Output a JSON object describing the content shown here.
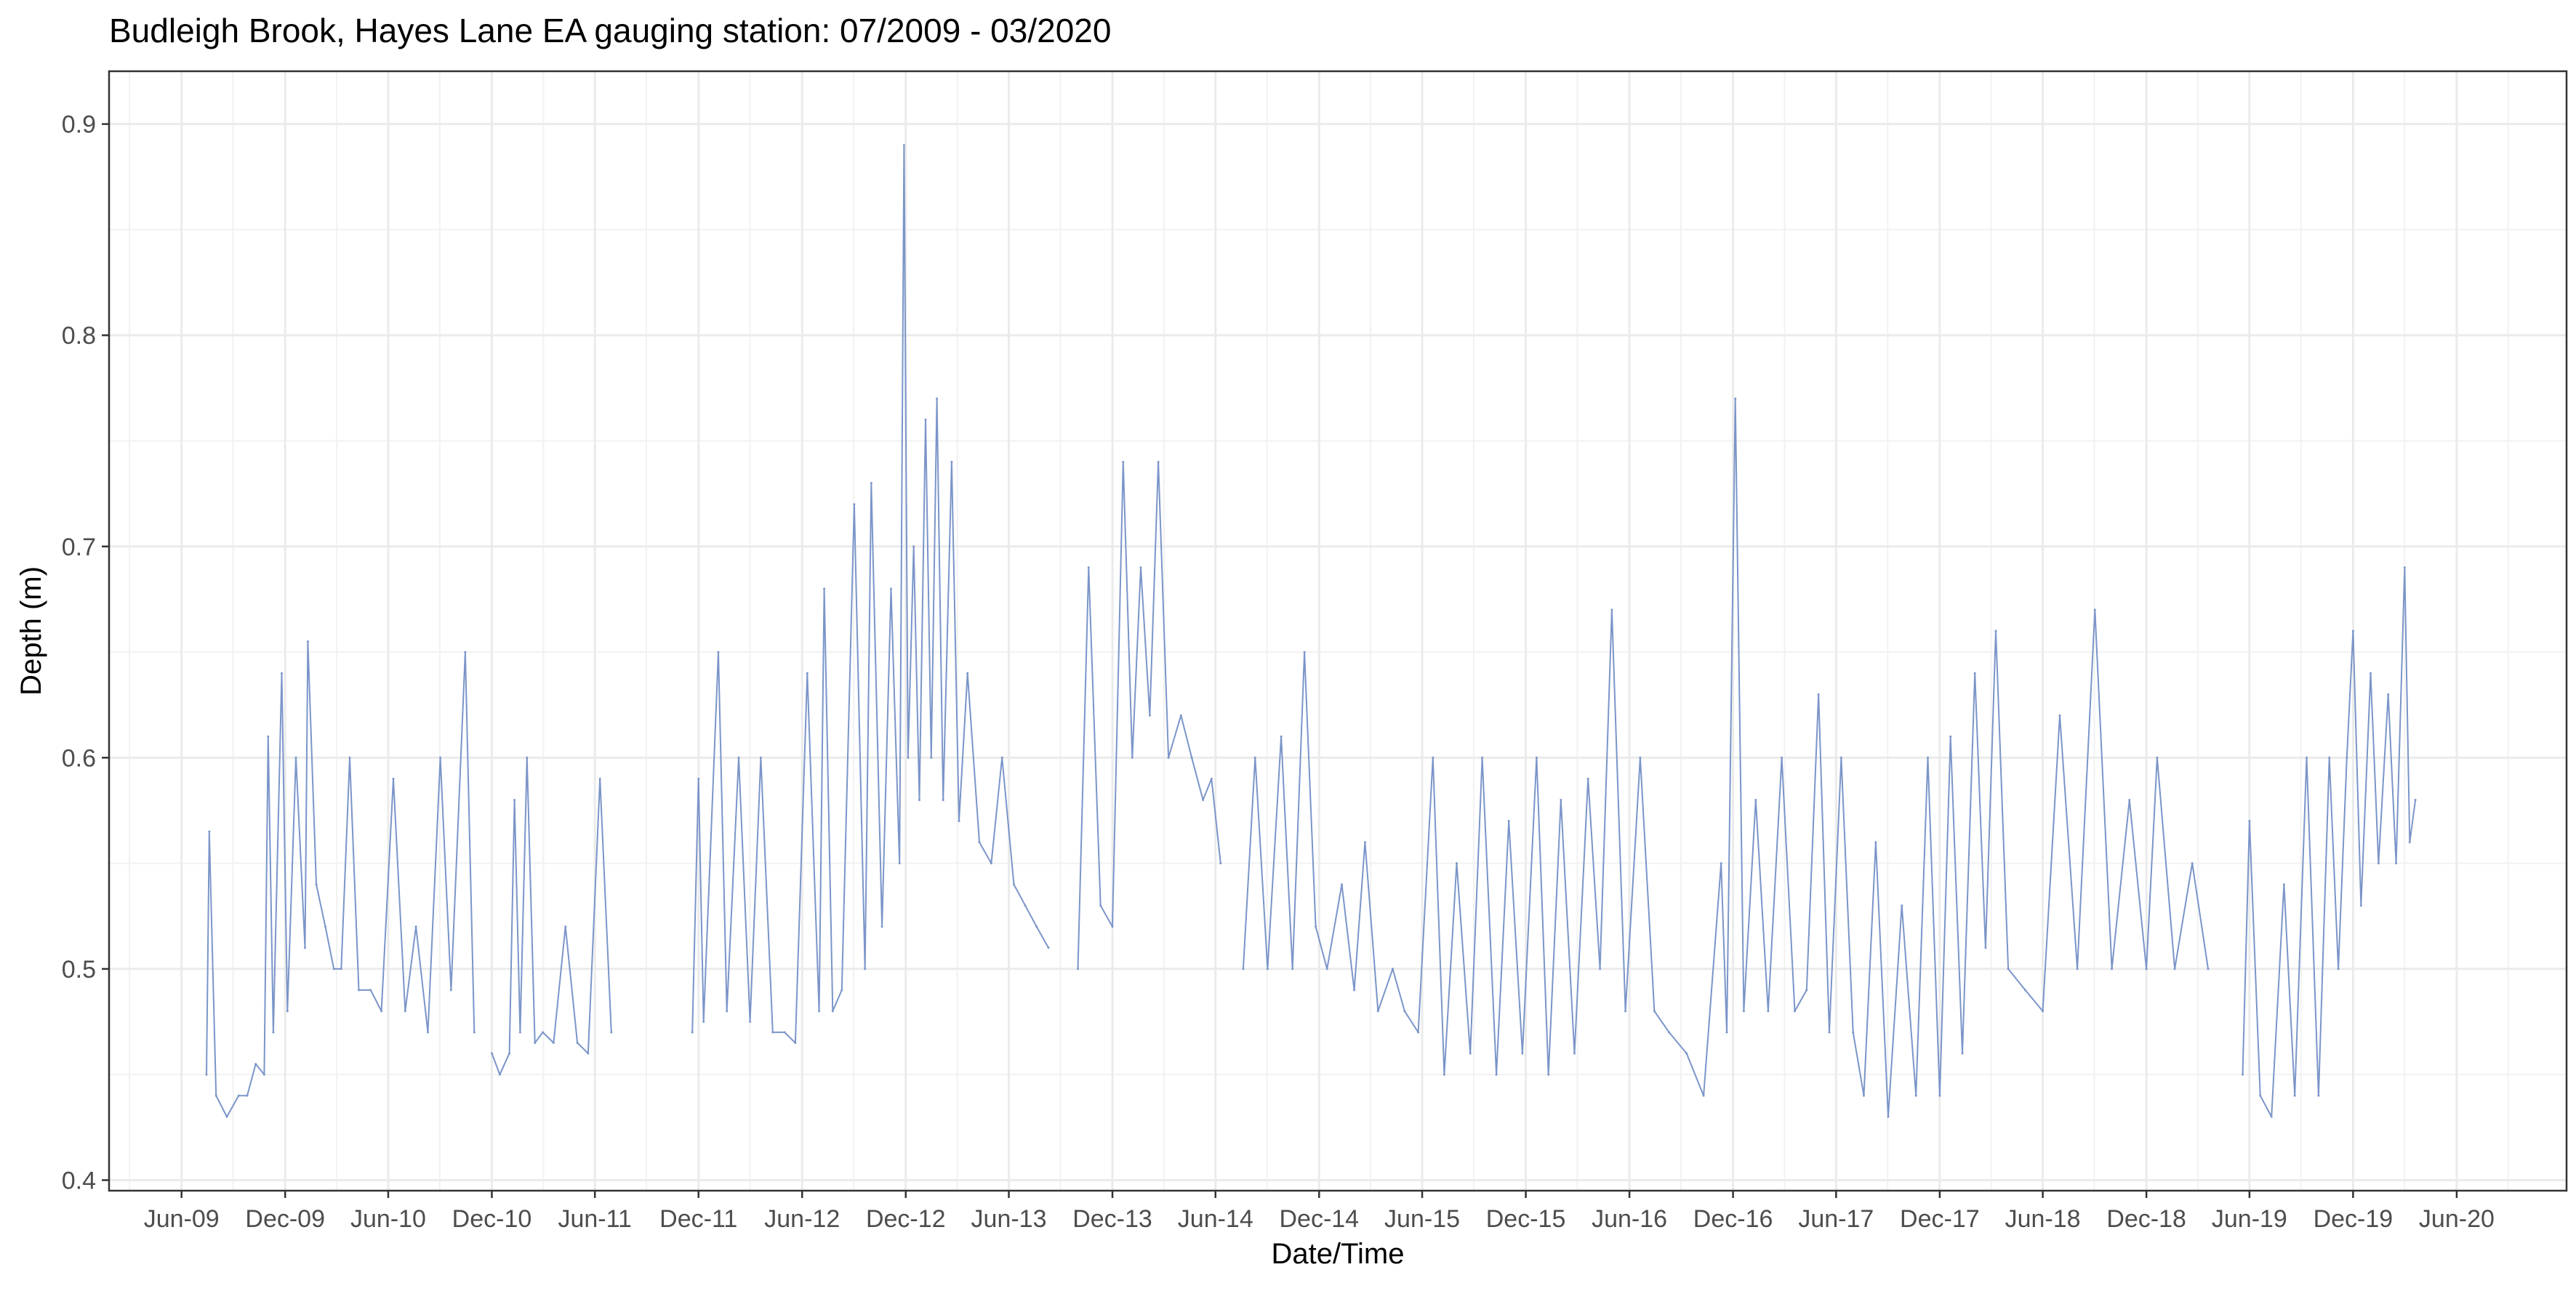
{
  "chart_data": {
    "type": "line",
    "title": "Budleigh Brook, Hayes Lane EA gauging station: 07/2009 - 03/2020",
    "xlabel": "Date/Time",
    "ylabel": "Depth (m)",
    "xlim": [
      "2009-01-24",
      "2020-12-12"
    ],
    "ylim": [
      0.395,
      0.925
    ],
    "x_ticks": [
      "2009-06-01",
      "2009-12-01",
      "2010-06-01",
      "2010-12-01",
      "2011-06-01",
      "2011-12-01",
      "2012-06-01",
      "2012-12-01",
      "2013-06-01",
      "2013-12-01",
      "2014-06-01",
      "2014-12-01",
      "2015-06-01",
      "2015-12-01",
      "2016-06-01",
      "2016-12-01",
      "2017-06-01",
      "2017-12-01",
      "2018-06-01",
      "2018-12-01",
      "2019-06-01",
      "2019-12-01",
      "2020-06-01"
    ],
    "x_tick_labels": [
      "Jun-09",
      "Dec-09",
      "Jun-10",
      "Dec-10",
      "Jun-11",
      "Dec-11",
      "Jun-12",
      "Dec-12",
      "Jun-13",
      "Dec-13",
      "Jun-14",
      "Dec-14",
      "Jun-15",
      "Dec-15",
      "Jun-16",
      "Dec-16",
      "Jun-17",
      "Dec-17",
      "Jun-18",
      "Dec-18",
      "Jun-19",
      "Dec-19",
      "Jun-20"
    ],
    "y_ticks": [
      0.4,
      0.5,
      0.6,
      0.7,
      0.8,
      0.9
    ],
    "y_tick_labels": [
      "0.4",
      "0.5",
      "0.6",
      "0.7",
      "0.8",
      "0.9"
    ],
    "grid": true,
    "line_color": "#7b95c9",
    "series": [
      {
        "segments": [
          {
            "x": [
              "2009-07-15",
              "2009-07-20",
              "2009-08-01",
              "2009-08-20",
              "2009-09-10",
              "2009-09-25",
              "2009-10-10",
              "2009-10-25",
              "2009-11-01",
              "2009-11-10",
              "2009-11-25",
              "2009-12-05",
              "2009-12-20",
              "2010-01-05",
              "2010-01-10",
              "2010-01-25",
              "2010-02-10",
              "2010-02-25",
              "2010-03-10",
              "2010-03-25",
              "2010-04-10",
              "2010-05-01",
              "2010-05-20",
              "2010-06-10",
              "2010-07-01",
              "2010-07-20",
              "2010-08-10",
              "2010-09-01",
              "2010-09-20",
              "2010-10-15",
              "2010-10-31"
            ],
            "y": [
              0.45,
              0.565,
              0.44,
              0.43,
              0.44,
              0.44,
              0.455,
              0.45,
              0.61,
              0.47,
              0.64,
              0.48,
              0.6,
              0.51,
              0.655,
              0.54,
              0.52,
              0.5,
              0.5,
              0.6,
              0.49,
              0.49,
              0.48,
              0.59,
              0.48,
              0.52,
              0.47,
              0.6,
              0.49,
              0.65,
              0.47
            ]
          },
          {
            "x": [
              "2010-12-01",
              "2010-12-15",
              "2011-01-01",
              "2011-01-10",
              "2011-01-20",
              "2011-02-01",
              "2011-02-15",
              "2011-03-01",
              "2011-03-20",
              "2011-04-10",
              "2011-05-01",
              "2011-05-20",
              "2011-06-10",
              "2011-06-30"
            ],
            "y": [
              0.46,
              0.45,
              0.46,
              0.58,
              0.47,
              0.6,
              0.465,
              0.47,
              0.465,
              0.52,
              0.465,
              0.46,
              0.59,
              0.47
            ]
          },
          {
            "x": [
              "2011-11-20",
              "2011-12-01",
              "2011-12-10",
              "2012-01-05",
              "2012-01-20",
              "2012-02-10",
              "2012-03-01",
              "2012-03-20",
              "2012-04-10",
              "2012-05-01",
              "2012-05-20",
              "2012-06-10",
              "2012-07-01",
              "2012-07-10",
              "2012-07-25",
              "2012-08-10",
              "2012-09-01",
              "2012-09-20",
              "2012-10-01",
              "2012-10-20",
              "2012-11-05",
              "2012-11-20",
              "2012-11-28",
              "2012-12-05",
              "2012-12-15",
              "2012-12-25",
              "2013-01-05",
              "2013-01-15",
              "2013-01-25",
              "2013-02-05",
              "2013-02-20",
              "2013-03-05",
              "2013-03-20",
              "2013-04-10",
              "2013-05-01",
              "2013-05-20",
              "2013-06-10",
              "2013-06-30",
              "2013-07-20",
              "2013-08-10"
            ],
            "y": [
              0.47,
              0.59,
              0.475,
              0.65,
              0.48,
              0.6,
              0.475,
              0.6,
              0.47,
              0.47,
              0.465,
              0.64,
              0.48,
              0.68,
              0.48,
              0.49,
              0.72,
              0.5,
              0.73,
              0.52,
              0.68,
              0.55,
              0.89,
              0.6,
              0.7,
              0.58,
              0.76,
              0.6,
              0.77,
              0.58,
              0.74,
              0.57,
              0.64,
              0.56,
              0.55,
              0.6,
              0.54,
              0.53,
              0.52,
              0.51
            ]
          },
          {
            "x": [
              "2013-10-01",
              "2013-10-20",
              "2013-11-10",
              "2013-12-01",
              "2013-12-20",
              "2014-01-05",
              "2014-01-20",
              "2014-02-05",
              "2014-02-20",
              "2014-03-10",
              "2014-04-01",
              "2014-04-20",
              "2014-05-10",
              "2014-05-25",
              "2014-06-10"
            ],
            "y": [
              0.5,
              0.69,
              0.53,
              0.52,
              0.74,
              0.6,
              0.69,
              0.62,
              0.74,
              0.6,
              0.62,
              0.6,
              0.58,
              0.59,
              0.55
            ]
          },
          {
            "x": [
              "2014-07-20",
              "2014-08-10",
              "2014-09-01",
              "2014-09-25",
              "2014-10-15",
              "2014-11-05",
              "2014-11-25",
              "2014-12-15",
              "2015-01-10",
              "2015-02-01",
              "2015-02-20",
              "2015-03-15",
              "2015-04-10",
              "2015-05-01",
              "2015-05-25",
              "2015-06-20",
              "2015-07-10",
              "2015-08-01",
              "2015-08-25",
              "2015-09-15",
              "2015-10-10",
              "2015-11-01",
              "2015-11-25",
              "2015-12-20",
              "2016-01-10",
              "2016-02-01",
              "2016-02-25",
              "2016-03-20",
              "2016-04-10",
              "2016-05-01",
              "2016-05-25",
              "2016-06-20",
              "2016-07-15",
              "2016-08-10",
              "2016-09-10",
              "2016-10-10",
              "2016-11-10",
              "2016-11-20",
              "2016-12-05",
              "2016-12-20",
              "2017-01-10",
              "2017-02-01",
              "2017-02-25",
              "2017-03-20",
              "2017-04-10",
              "2017-05-01",
              "2017-05-20",
              "2017-06-10",
              "2017-07-01",
              "2017-07-20",
              "2017-08-10",
              "2017-09-01",
              "2017-09-25",
              "2017-10-20",
              "2017-11-10",
              "2017-12-01",
              "2017-12-20",
              "2018-01-10",
              "2018-02-01",
              "2018-02-20",
              "2018-03-10",
              "2018-04-01",
              "2018-05-01",
              "2018-06-01",
              "2018-07-01",
              "2018-08-01",
              "2018-09-01",
              "2018-10-01",
              "2018-11-01",
              "2018-12-01",
              "2018-12-20",
              "2019-01-20",
              "2019-02-20",
              "2019-03-20"
            ],
            "y": [
              0.5,
              0.6,
              0.5,
              0.61,
              0.5,
              0.65,
              0.52,
              0.5,
              0.54,
              0.49,
              0.56,
              0.48,
              0.5,
              0.48,
              0.47,
              0.6,
              0.45,
              0.55,
              0.46,
              0.6,
              0.45,
              0.57,
              0.46,
              0.6,
              0.45,
              0.58,
              0.46,
              0.59,
              0.5,
              0.67,
              0.48,
              0.6,
              0.48,
              0.47,
              0.46,
              0.44,
              0.55,
              0.47,
              0.77,
              0.48,
              0.58,
              0.48,
              0.6,
              0.48,
              0.49,
              0.63,
              0.47,
              0.6,
              0.47,
              0.44,
              0.56,
              0.43,
              0.53,
              0.44,
              0.6,
              0.44,
              0.61,
              0.46,
              0.64,
              0.51,
              0.66,
              0.5,
              0.49,
              0.48,
              0.62,
              0.5,
              0.67,
              0.5,
              0.58,
              0.5,
              0.6,
              0.5,
              0.55,
              0.5
            ]
          },
          {
            "x": [
              "2019-05-20",
              "2019-06-01",
              "2019-06-20",
              "2019-07-10",
              "2019-08-01",
              "2019-08-20",
              "2019-09-10",
              "2019-10-01",
              "2019-10-20",
              "2019-11-05",
              "2019-11-20",
              "2019-12-01",
              "2019-12-15",
              "2020-01-01",
              "2020-01-15",
              "2020-02-01",
              "2020-02-15",
              "2020-03-01",
              "2020-03-10",
              "2020-03-20"
            ],
            "y": [
              0.45,
              0.57,
              0.44,
              0.43,
              0.54,
              0.44,
              0.6,
              0.44,
              0.6,
              0.5,
              0.6,
              0.66,
              0.53,
              0.64,
              0.55,
              0.63,
              0.55,
              0.69,
              0.56,
              0.58
            ]
          }
        ]
      }
    ]
  }
}
